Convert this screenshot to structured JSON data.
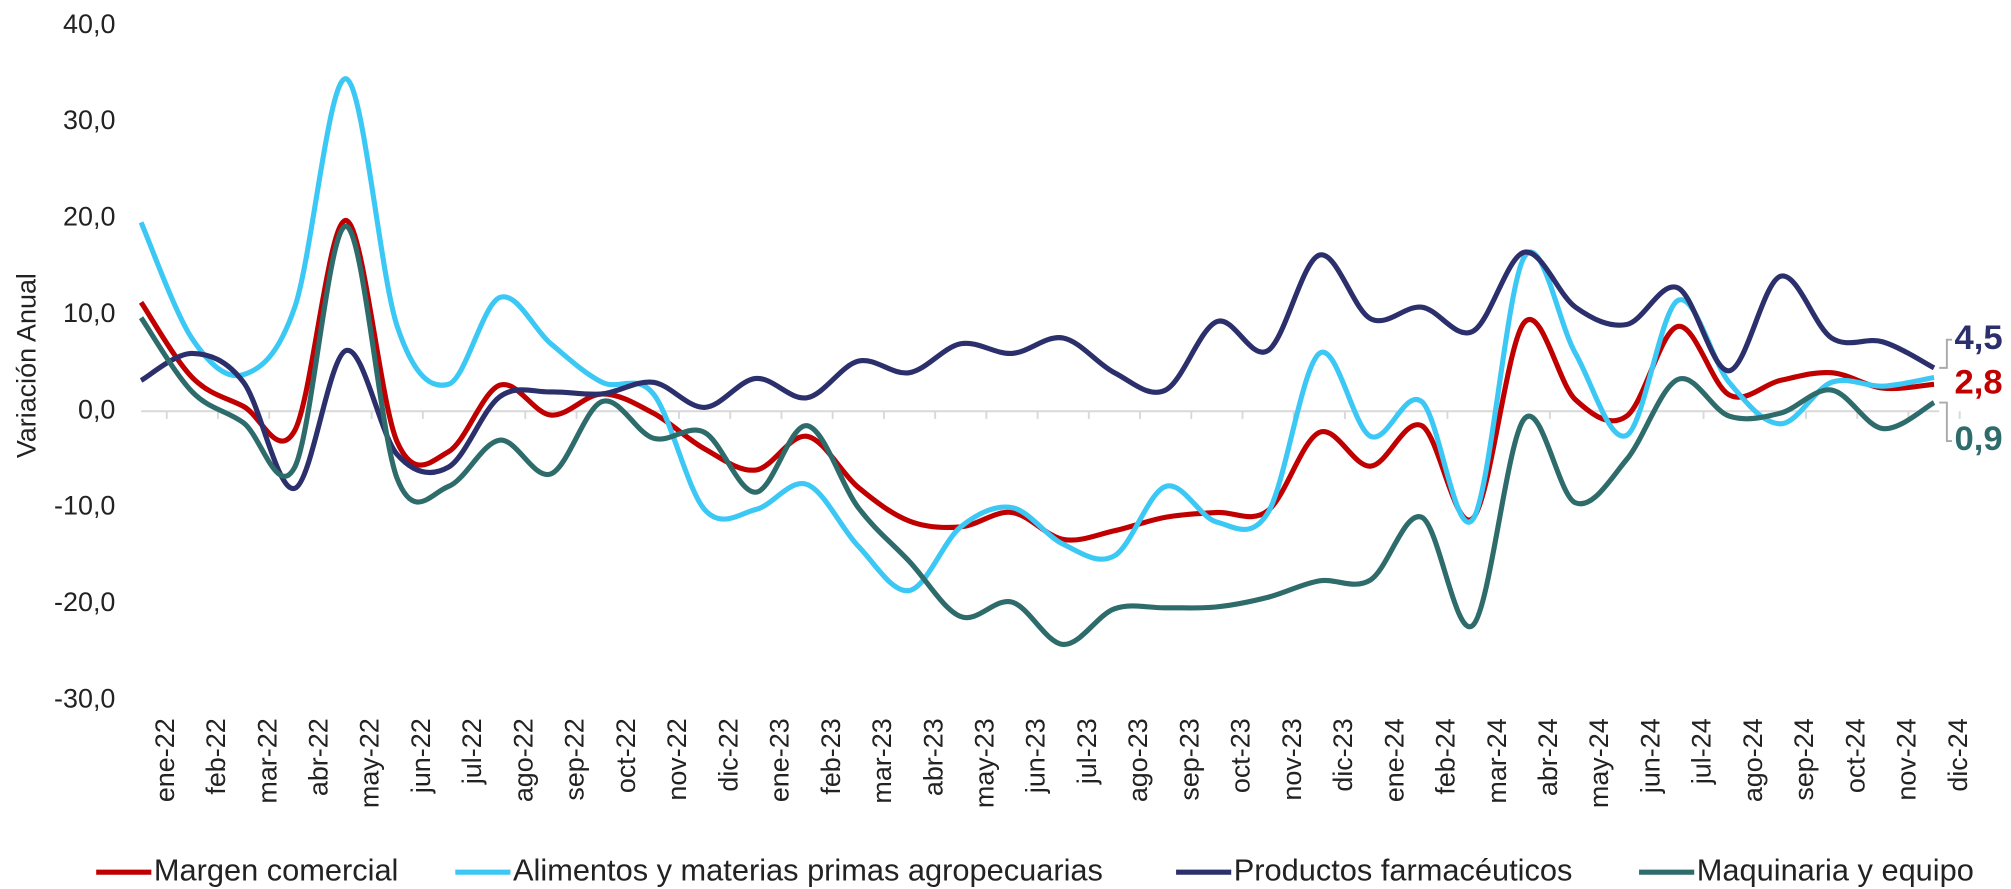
{
  "chart_data": {
    "type": "line",
    "y_label": "Variación Anual",
    "categories": [
      "ene-22",
      "feb-22",
      "mar-22",
      "abr-22",
      "may-22",
      "jun-22",
      "jul-22",
      "ago-22",
      "sep-22",
      "oct-22",
      "nov-22",
      "dic-22",
      "ene-23",
      "feb-23",
      "mar-23",
      "abr-23",
      "may-23",
      "jun-23",
      "jul-23",
      "ago-23",
      "sep-23",
      "oct-23",
      "nov-23",
      "dic-23",
      "ene-24",
      "feb-24",
      "mar-24",
      "abr-24",
      "may-24",
      "jun-24",
      "jul-24",
      "ago-24",
      "sep-24",
      "oct-24",
      "nov-24",
      "dic-24"
    ],
    "ylim": [
      -30,
      40
    ],
    "yticks": [
      {
        "value": -30,
        "label": "-30,0"
      },
      {
        "value": -20,
        "label": "-20,0"
      },
      {
        "value": -10,
        "label": "-10,0"
      },
      {
        "value": 0,
        "label": "0,0"
      },
      {
        "value": 10,
        "label": "10,0"
      },
      {
        "value": 20,
        "label": "20,0"
      },
      {
        "value": 30,
        "label": "30,0"
      },
      {
        "value": 40,
        "label": "40,0"
      }
    ],
    "series": [
      {
        "name": "Margen comercial",
        "color": "#c00000",
        "end_label": "2,8",
        "values": [
          11.3,
          3.5,
          0.5,
          -2.0,
          19.8,
          -3.2,
          -4.2,
          2.7,
          -0.4,
          1.8,
          -0.2,
          -3.9,
          -6.1,
          -2.6,
          -7.9,
          -11.4,
          -12.0,
          -10.5,
          -13.3,
          -12.4,
          -11.0,
          -10.5,
          -10.3,
          -2.2,
          -5.7,
          -1.5,
          -11.1,
          9.2,
          1.2,
          -0.5,
          8.8,
          1.7,
          3.2,
          4.0,
          2.4,
          2.8
        ]
      },
      {
        "name": "Alimentos y materias primas agropecuarias",
        "color": "#3cc8f5",
        "values": [
          19.6,
          7.5,
          3.8,
          10.8,
          34.5,
          8.8,
          2.8,
          11.8,
          7.0,
          3.0,
          1.8,
          -10.2,
          -10.2,
          -7.6,
          -14.0,
          -18.6,
          -12.0,
          -10.0,
          -13.8,
          -15.0,
          -7.8,
          -11.5,
          -10.5,
          6.0,
          -2.6,
          1.0,
          -11.2,
          16.0,
          6.0,
          -2.5,
          11.5,
          3.0,
          -1.3,
          3.0,
          2.6,
          3.5
        ]
      },
      {
        "name": "Productos farmacéuticos",
        "color": "#2b2f6b",
        "end_label": "4,5",
        "values": [
          3.2,
          6.0,
          3.0,
          -8.0,
          6.3,
          -4.5,
          -5.8,
          1.5,
          2.0,
          1.8,
          3.0,
          0.4,
          3.4,
          1.4,
          5.2,
          4.0,
          7.0,
          6.0,
          7.6,
          4.0,
          2.2,
          9.3,
          6.3,
          16.2,
          9.6,
          10.8,
          8.3,
          16.5,
          10.8,
          9.0,
          12.8,
          4.2,
          14.0,
          7.6,
          7.2,
          4.5
        ]
      },
      {
        "name": "Maquinaria y equipo",
        "color": "#2e6b6b",
        "end_label": "0,9",
        "values": [
          9.7,
          2.0,
          -1.2,
          -5.8,
          19.2,
          -7.0,
          -7.8,
          -3.0,
          -6.5,
          1.0,
          -2.8,
          -2.2,
          -8.4,
          -1.5,
          -10.0,
          -15.6,
          -21.3,
          -19.8,
          -24.2,
          -20.5,
          -20.4,
          -20.3,
          -19.3,
          -17.6,
          -17.5,
          -11.0,
          -22.2,
          -0.8,
          -9.5,
          -5.0,
          3.3,
          -0.5,
          -0.2,
          2.2,
          -1.8,
          0.9
        ]
      }
    ]
  }
}
